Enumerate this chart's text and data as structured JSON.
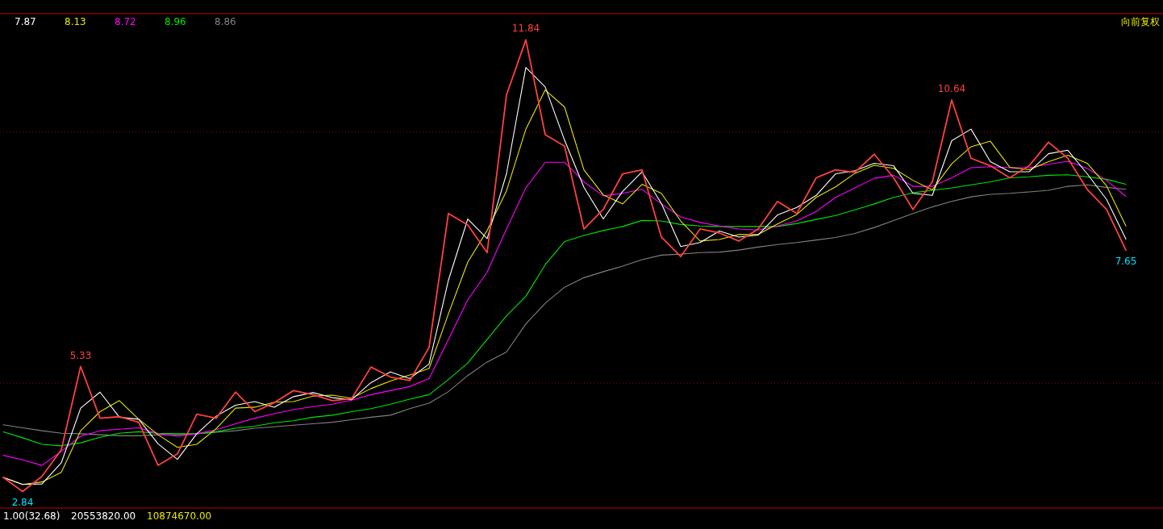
{
  "chart_data": {
    "type": "line",
    "categories": [
      null,
      null,
      null,
      null,
      null,
      null,
      null,
      null,
      null,
      null,
      null,
      null,
      null,
      null,
      null,
      null,
      null,
      null,
      null,
      null,
      null,
      null,
      null,
      null,
      null,
      null,
      null,
      null,
      null,
      null,
      null,
      null,
      null,
      null,
      null,
      null,
      null,
      null,
      null,
      null,
      null,
      null,
      null,
      null,
      null,
      null,
      null,
      null,
      null,
      null,
      null,
      null,
      null,
      null,
      null,
      null,
      null,
      null,
      null
    ],
    "series": [
      {
        "color": "#ff4040",
        "values": [
          3.12,
          2.84,
          3.14,
          3.67,
          5.33,
          4.3,
          4.33,
          4.22,
          3.36,
          3.59,
          4.38,
          4.3,
          4.82,
          4.43,
          4.61,
          4.85,
          4.77,
          4.65,
          4.69,
          5.32,
          5.12,
          5.05,
          5.71,
          8.38,
          8.15,
          7.6,
          10.74,
          11.84,
          9.95,
          9.72,
          8.07,
          8.46,
          9.17,
          9.25,
          7.91,
          7.52,
          8.07,
          7.99,
          7.83,
          8.07,
          8.62,
          8.38,
          9.09,
          9.25,
          9.2,
          9.56,
          9.09,
          8.46,
          9.01,
          10.64,
          9.48,
          9.33,
          9.09,
          9.33,
          9.8,
          9.48,
          8.86,
          8.46,
          7.65
        ],
        "value_labels": [
          null,
          "2.84",
          null,
          null,
          "5.33",
          null,
          null,
          null,
          null,
          null,
          null,
          null,
          null,
          null,
          null,
          null,
          null,
          null,
          null,
          null,
          null,
          null,
          null,
          null,
          null,
          null,
          null,
          "11.84",
          null,
          null,
          null,
          null,
          null,
          null,
          null,
          null,
          null,
          null,
          null,
          null,
          null,
          null,
          null,
          null,
          null,
          null,
          null,
          null,
          null,
          "10.64",
          null,
          null,
          null,
          null,
          null,
          null,
          null,
          null,
          "7.65"
        ]
      },
      {
        "name": "7.87",
        "color": "#ffffff",
        "values": [
          3.12,
          2.98,
          2.99,
          3.41,
          4.5,
          4.82,
          4.32,
          4.28,
          3.79,
          3.48,
          3.99,
          4.34,
          4.56,
          4.63,
          4.52,
          4.73,
          4.81,
          4.71,
          4.67,
          5.01,
          5.22,
          5.09,
          5.38,
          7.05,
          8.27,
          7.88,
          9.17,
          11.29,
          10.9,
          9.84,
          8.9,
          8.27,
          8.82,
          9.21,
          8.58,
          7.72,
          7.8,
          8.03,
          7.91,
          7.95,
          8.35,
          8.5,
          8.74,
          9.17,
          9.23,
          9.38,
          9.33,
          8.78,
          8.74,
          9.83,
          10.06,
          9.41,
          9.21,
          9.21,
          9.57,
          9.64,
          9.17,
          8.66,
          7.87
        ]
      },
      {
        "name": "8.13",
        "color": "#e6e600",
        "values": [
          3.12,
          2.98,
          3.03,
          3.22,
          4.05,
          4.43,
          4.65,
          4.28,
          3.97,
          3.72,
          3.78,
          4.09,
          4.5,
          4.52,
          4.62,
          4.63,
          4.74,
          4.76,
          4.7,
          4.89,
          5.04,
          5.16,
          5.29,
          6.38,
          7.41,
          8.04,
          8.83,
          10.06,
          10.84,
          10.5,
          9.25,
          8.75,
          8.57,
          8.96,
          8.78,
          8.23,
          7.83,
          7.86,
          7.96,
          7.96,
          8.17,
          8.36,
          8.7,
          8.91,
          9.18,
          9.34,
          9.28,
          9.04,
          8.85,
          9.37,
          9.71,
          9.82,
          9.3,
          9.25,
          9.41,
          9.54,
          9.38,
          8.93,
          8.13
        ]
      },
      {
        "name": "8.72",
        "color": "#ff00ff",
        "values": [
          3.56,
          3.47,
          3.36,
          3.64,
          3.94,
          4.05,
          4.08,
          4.11,
          3.99,
          3.94,
          3.99,
          4.07,
          4.19,
          4.3,
          4.39,
          4.47,
          4.53,
          4.58,
          4.66,
          4.77,
          4.85,
          4.93,
          5.09,
          5.87,
          6.66,
          7.21,
          8.07,
          8.89,
          9.4,
          9.4,
          9.01,
          8.73,
          8.78,
          8.86,
          8.57,
          8.31,
          8.2,
          8.13,
          8.07,
          8.05,
          8.13,
          8.23,
          8.42,
          8.7,
          8.89,
          9.08,
          9.14,
          8.92,
          8.92,
          9.09,
          9.29,
          9.31,
          9.29,
          9.29,
          9.36,
          9.42,
          9.28,
          9.04,
          8.72
        ]
      },
      {
        "name": "8.96",
        "color": "#00e600",
        "values": [
          4.03,
          3.91,
          3.78,
          3.75,
          3.81,
          3.92,
          4.0,
          4.03,
          4.0,
          3.99,
          3.99,
          4.03,
          4.1,
          4.14,
          4.21,
          4.25,
          4.32,
          4.36,
          4.43,
          4.49,
          4.58,
          4.68,
          4.77,
          5.07,
          5.4,
          5.87,
          6.34,
          6.73,
          7.36,
          7.82,
          7.94,
          8.04,
          8.12,
          8.24,
          8.23,
          8.16,
          8.13,
          8.12,
          8.12,
          8.12,
          8.12,
          8.18,
          8.26,
          8.34,
          8.45,
          8.57,
          8.7,
          8.79,
          8.84,
          8.89,
          8.95,
          9.01,
          9.09,
          9.11,
          9.14,
          9.15,
          9.11,
          9.06,
          8.96
        ]
      },
      {
        "name": "8.86",
        "color": "#808080",
        "values": [
          4.17,
          4.11,
          4.05,
          4.0,
          3.99,
          3.97,
          3.95,
          3.95,
          3.97,
          3.97,
          3.99,
          4.02,
          4.05,
          4.1,
          4.13,
          4.16,
          4.19,
          4.22,
          4.27,
          4.32,
          4.36,
          4.49,
          4.6,
          4.83,
          5.15,
          5.42,
          5.62,
          6.18,
          6.59,
          6.91,
          7.1,
          7.22,
          7.33,
          7.46,
          7.55,
          7.57,
          7.6,
          7.61,
          7.65,
          7.71,
          7.76,
          7.8,
          7.85,
          7.9,
          7.98,
          8.1,
          8.24,
          8.38,
          8.51,
          8.62,
          8.71,
          8.76,
          8.78,
          8.81,
          8.84,
          8.92,
          8.95,
          8.9,
          8.86
        ]
      }
    ],
    "ylim": [
      2.51,
      12.36
    ],
    "yticks": [
      {
        "value": 5,
        "label": null
      },
      {
        "value": 10,
        "label": null
      }
    ],
    "grid": "y",
    "legend": "top left",
    "annotations": [
      "向前复权",
      "1.00(32.68)",
      "20553820.00",
      "10874670.00"
    ]
  }
}
